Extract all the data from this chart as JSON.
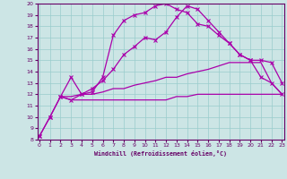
{
  "xlabel": "Windchill (Refroidissement éolien,°C)",
  "background_color": "#cce5e5",
  "grid_color": "#99cccc",
  "line_color": "#aa00aa",
  "xmin": 0,
  "xmax": 23,
  "ymin": 8,
  "ymax": 20,
  "line1_x": [
    0,
    1,
    2,
    3,
    4,
    5,
    6,
    7,
    8,
    9,
    10,
    11,
    12,
    13,
    14,
    15,
    16,
    17,
    18,
    19,
    20,
    21,
    22,
    23
  ],
  "line1_y": [
    8.3,
    10.0,
    11.8,
    11.5,
    12.0,
    12.5,
    13.2,
    14.2,
    15.5,
    16.2,
    17.0,
    16.8,
    17.5,
    18.8,
    19.8,
    19.5,
    18.5,
    17.5,
    16.5,
    15.5,
    15.0,
    15.0,
    14.8,
    13.0
  ],
  "line2_x": [
    0,
    1,
    2,
    3,
    4,
    5,
    6,
    7,
    8,
    9,
    10,
    11,
    12,
    13,
    14,
    15,
    16,
    17,
    18,
    19,
    20,
    21,
    22,
    23
  ],
  "line2_y": [
    8.3,
    10.0,
    11.8,
    13.5,
    12.0,
    12.2,
    13.5,
    17.2,
    18.5,
    19.0,
    19.2,
    19.8,
    20.0,
    19.5,
    19.2,
    18.2,
    18.0,
    17.2,
    16.5,
    15.5,
    15.0,
    13.5,
    13.0,
    12.0
  ],
  "line3_x": [
    2,
    3,
    4,
    5,
    6,
    7,
    8,
    9,
    10,
    11,
    12,
    13,
    14,
    15,
    16,
    17,
    18,
    19,
    20,
    21,
    22,
    23
  ],
  "line3_y": [
    11.8,
    11.5,
    11.5,
    11.5,
    11.5,
    11.5,
    11.5,
    11.5,
    11.5,
    11.5,
    11.5,
    11.8,
    11.8,
    12.0,
    12.0,
    12.0,
    12.0,
    12.0,
    12.0,
    12.0,
    12.0,
    12.0
  ],
  "line4_x": [
    2,
    3,
    4,
    5,
    6,
    7,
    8,
    9,
    10,
    11,
    12,
    13,
    14,
    15,
    16,
    17,
    18,
    19,
    20,
    21,
    22,
    23
  ],
  "line4_y": [
    11.8,
    11.8,
    12.0,
    12.0,
    12.2,
    12.5,
    12.5,
    12.8,
    13.0,
    13.2,
    13.5,
    13.5,
    13.8,
    14.0,
    14.2,
    14.5,
    14.8,
    14.8,
    14.8,
    14.8,
    13.0,
    12.0
  ]
}
